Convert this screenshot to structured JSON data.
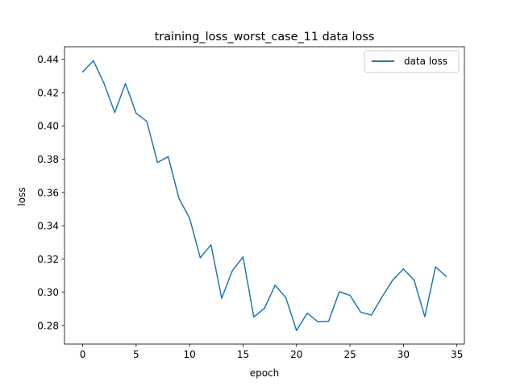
{
  "chart_data": {
    "type": "line",
    "title": "training_loss_worst_case_11 data loss",
    "xlabel": "epoch",
    "ylabel": "loss",
    "xlim": [
      -1.7,
      35.7
    ],
    "ylim": [
      0.2688,
      0.4476
    ],
    "xticks": [
      0,
      5,
      10,
      15,
      20,
      25,
      30,
      35
    ],
    "xtick_labels": [
      "0",
      "5",
      "10",
      "15",
      "20",
      "25",
      "30",
      "35"
    ],
    "yticks": [
      0.28,
      0.3,
      0.32,
      0.34,
      0.36,
      0.38,
      0.4,
      0.42,
      0.44
    ],
    "ytick_labels": [
      "0.28",
      "0.30",
      "0.32",
      "0.34",
      "0.36",
      "0.38",
      "0.40",
      "0.42",
      "0.44"
    ],
    "grid": false,
    "legend_position": "upper-right",
    "series": [
      {
        "name": "data loss",
        "color": "#1f77b4",
        "x": [
          0,
          1,
          2,
          3,
          4,
          5,
          6,
          7,
          8,
          9,
          10,
          11,
          12,
          13,
          14,
          15,
          16,
          17,
          18,
          19,
          20,
          21,
          22,
          23,
          24,
          25,
          26,
          27,
          28,
          29,
          30,
          31,
          32,
          33,
          34
        ],
        "y": [
          0.4325,
          0.4392,
          0.4255,
          0.408,
          0.4255,
          0.4076,
          0.4027,
          0.378,
          0.3815,
          0.3565,
          0.3445,
          0.3207,
          0.3285,
          0.2963,
          0.313,
          0.3212,
          0.2851,
          0.2903,
          0.3042,
          0.2967,
          0.2769,
          0.2874,
          0.2822,
          0.2825,
          0.3003,
          0.2981,
          0.288,
          0.2862,
          0.2972,
          0.3073,
          0.314,
          0.3072,
          0.2852,
          0.3152,
          0.3095
        ]
      }
    ]
  }
}
